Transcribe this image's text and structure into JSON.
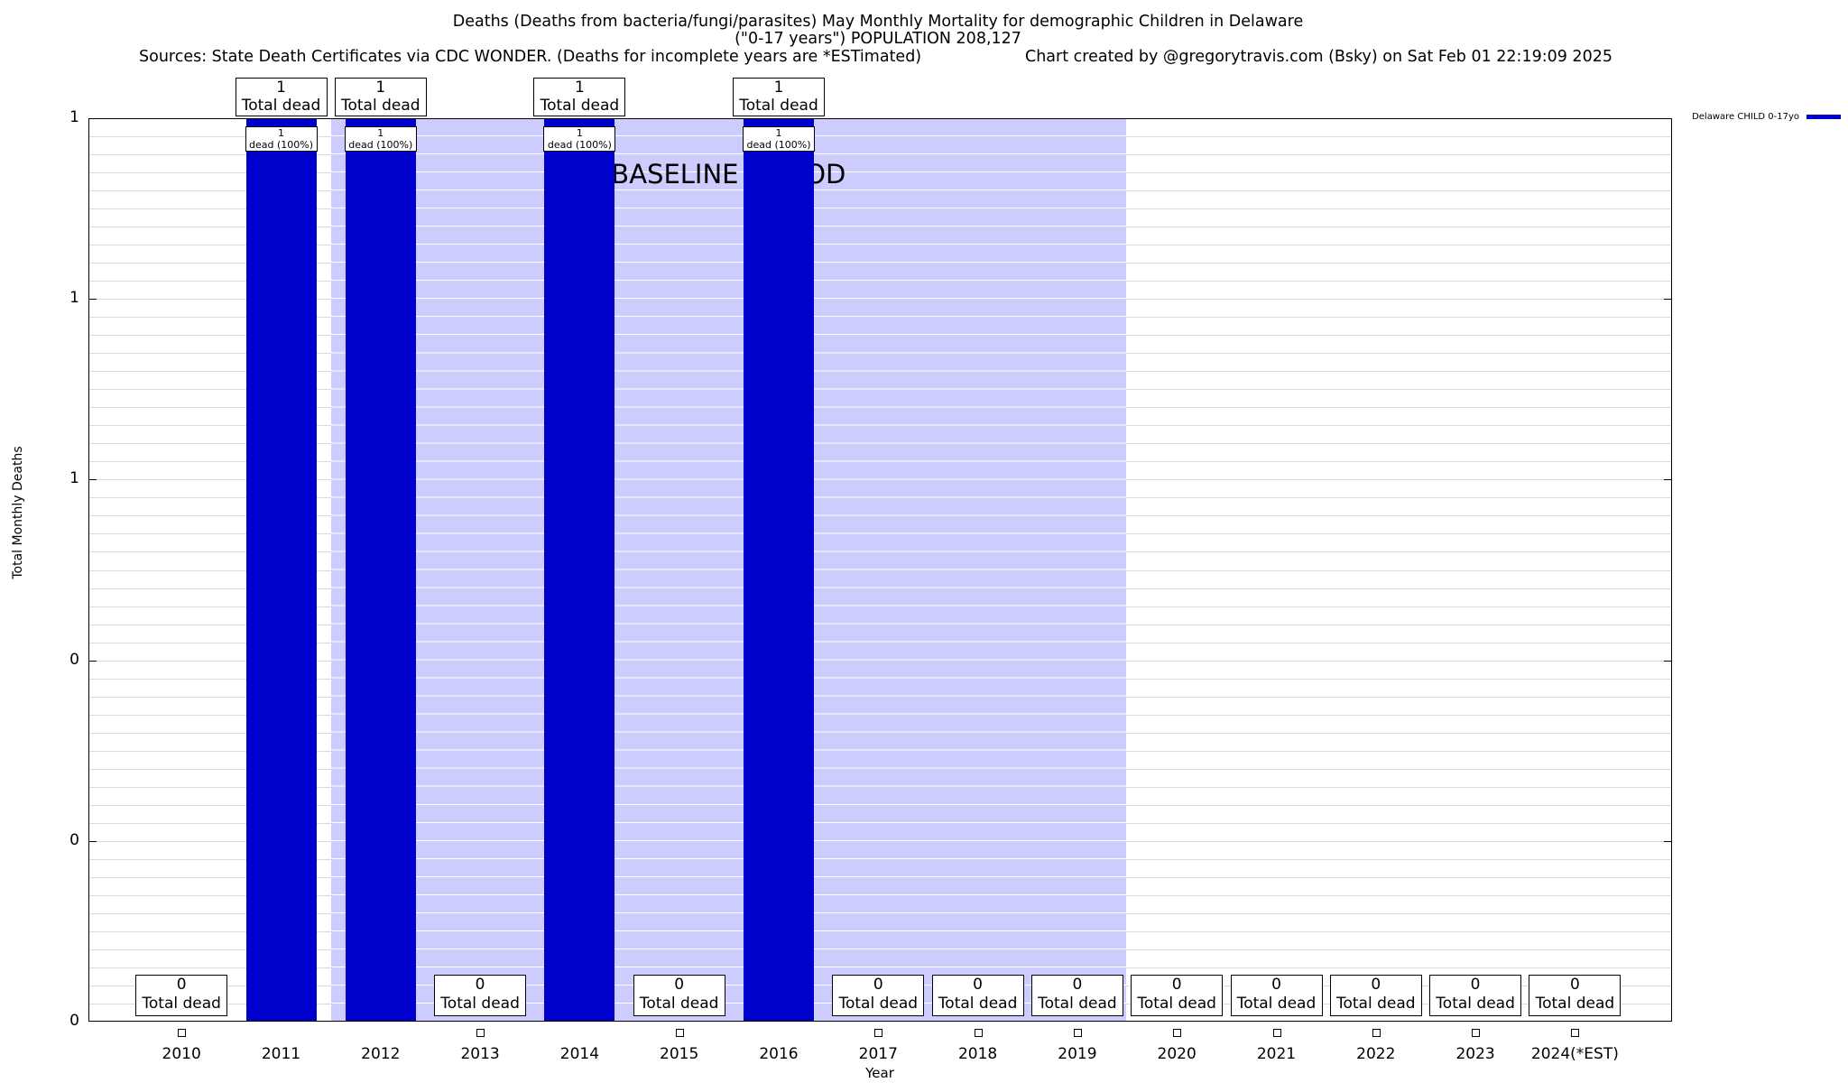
{
  "header": {
    "title_line1": "Deaths (Deaths from bacteria/fungi/parasites) May Monthly Mortality for demographic Children in Delaware",
    "title_line2": "(\"0-17 years\") POPULATION 208,127",
    "sources": "Sources: State Death Certificates via CDC WONDER. (Deaths for incomplete years are *ESTimated)",
    "credit": "Chart created by @gregorytravis.com (Bsky) on Sat Feb 01 22:19:09 2025"
  },
  "chart_data": {
    "type": "bar",
    "title": "Deaths (Deaths from bacteria/fungi/parasites) May Monthly Mortality for demographic Children in Delaware",
    "subtitle": "(\"0-17 years\") POPULATION 208,127",
    "xlabel": "Year",
    "ylabel": "Total Monthly Deaths",
    "ylim": [
      0,
      1
    ],
    "grid": true,
    "ytick_labels_bottom_to_top": [
      "0",
      "0",
      "0",
      "1",
      "1",
      "1"
    ],
    "categories": [
      "2010",
      "2011",
      "2012",
      "2013",
      "2014",
      "2015",
      "2016",
      "2017",
      "2018",
      "2019",
      "2020",
      "2021",
      "2022",
      "2023",
      "2024(*EST)"
    ],
    "values": [
      0,
      1,
      1,
      0,
      1,
      0,
      1,
      0,
      0,
      0,
      0,
      0,
      0,
      0,
      0
    ],
    "bar_color": "#0000cc",
    "baseline_band": {
      "label": "BASELINE PERIOD",
      "covers_years": [
        "2012",
        "2019"
      ],
      "color": "#ccccff"
    },
    "legend": {
      "label": "Delaware CHILD 0-17yo",
      "color": "#0000cc",
      "position": "top-right"
    },
    "labels": {
      "total_dead": "Total dead",
      "dead_pct": "dead (100%)"
    }
  }
}
